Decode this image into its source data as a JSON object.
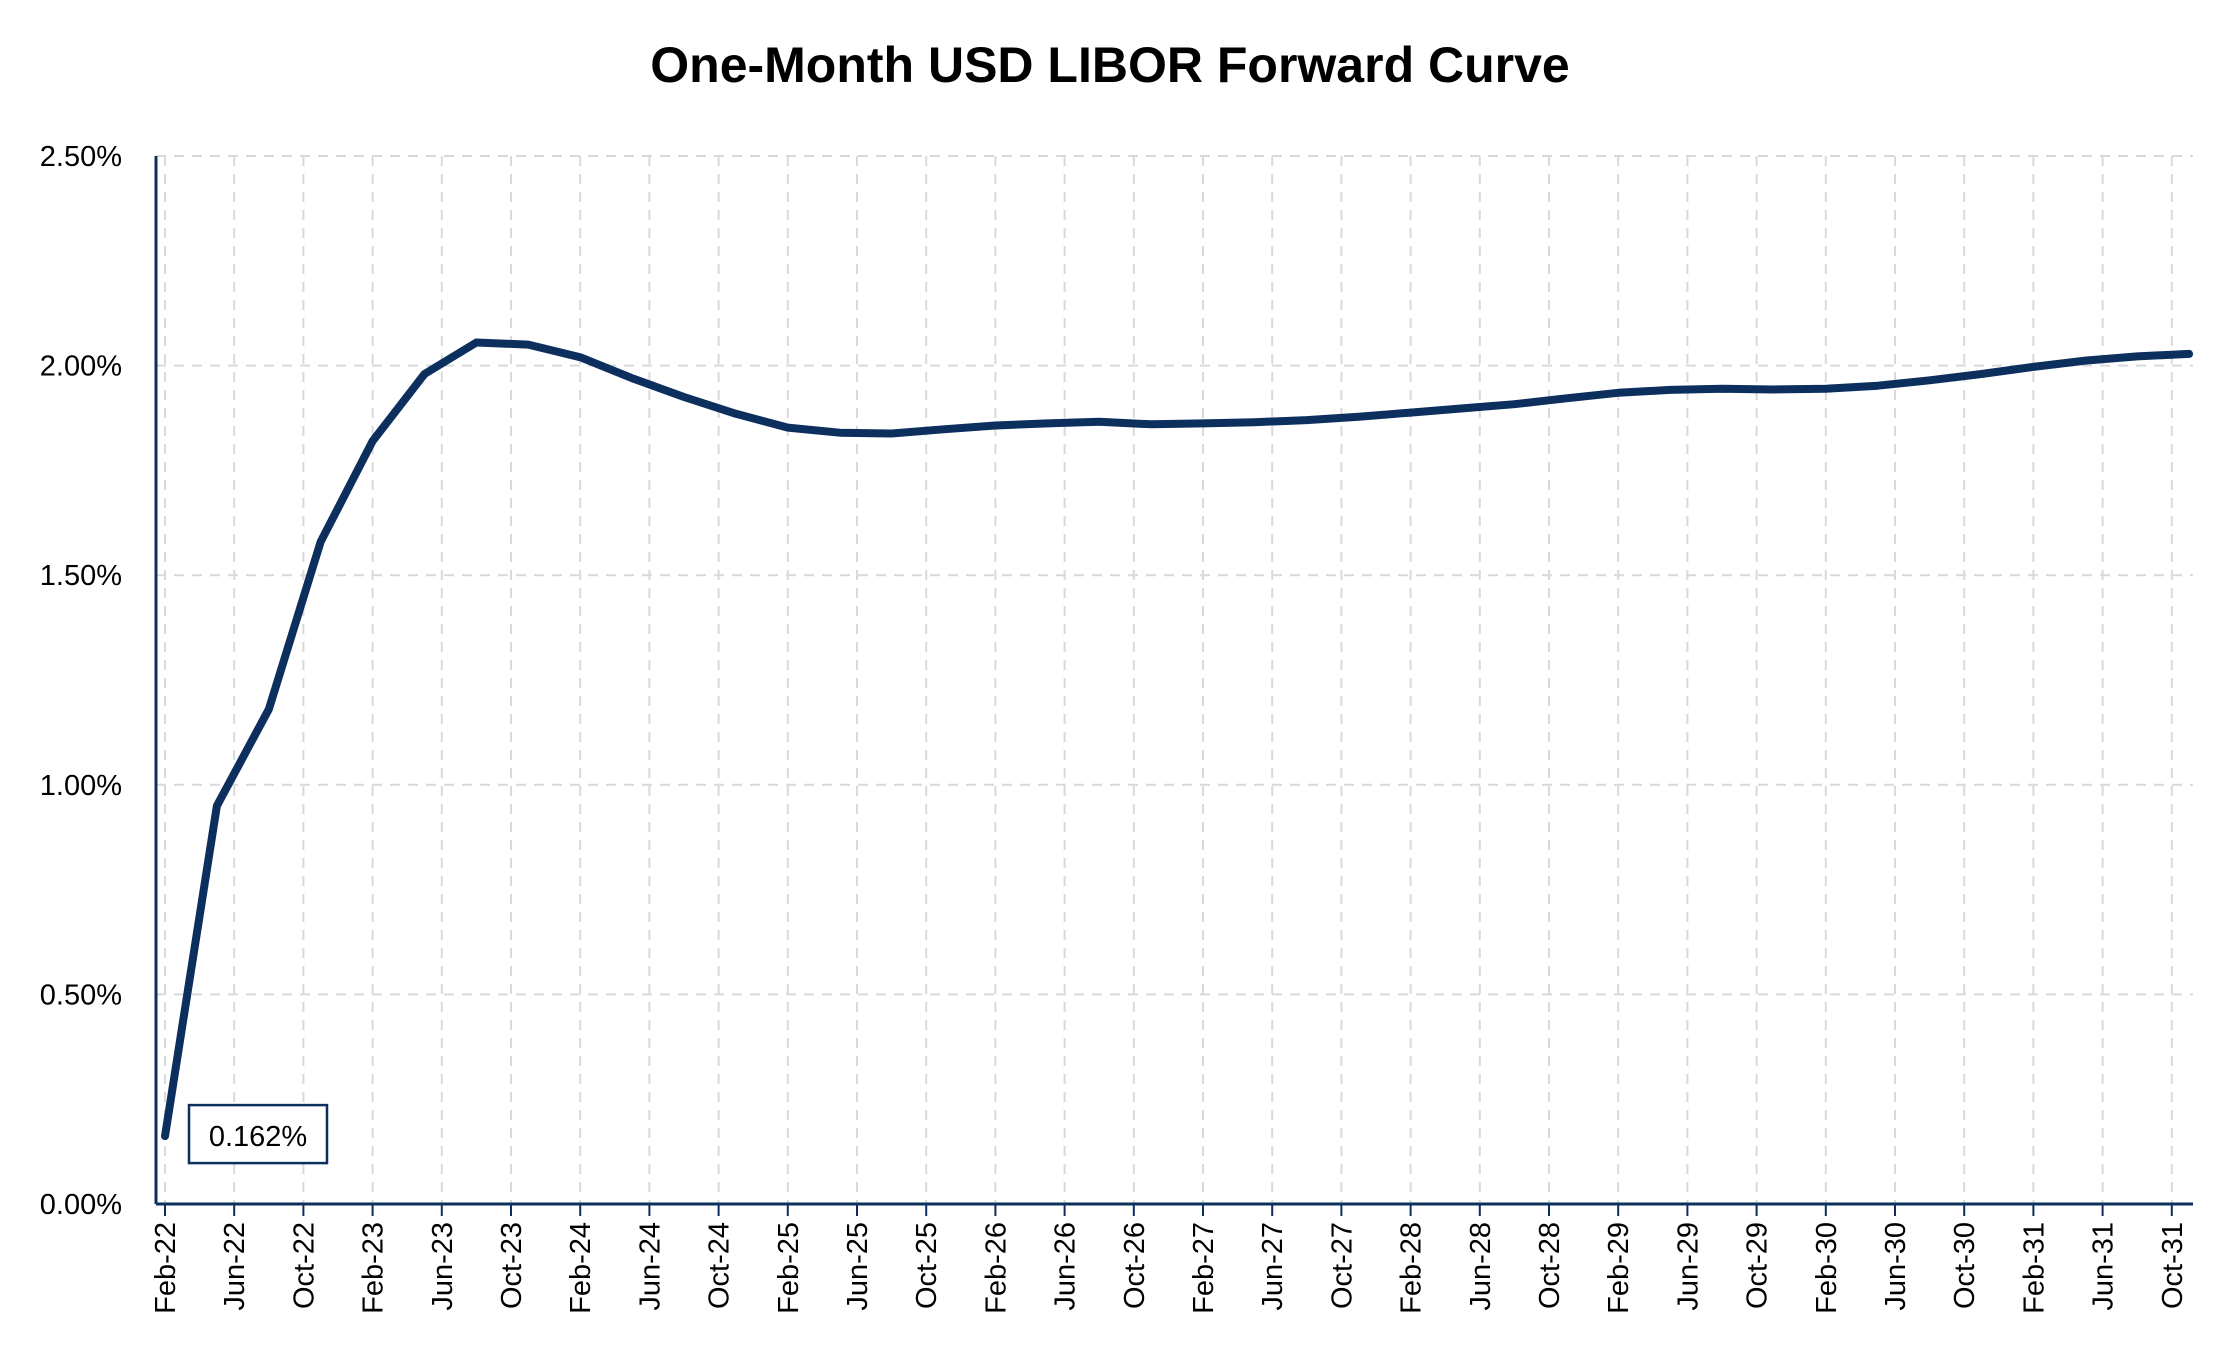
{
  "colors": {
    "line": "#0c2f5e",
    "axis": "#0c2f5e",
    "grid": "#d9d9d9",
    "text": "#000000",
    "label_border": "#0c2f5e"
  },
  "chart_data": {
    "type": "line",
    "title": "One-Month USD LIBOR Forward Curve",
    "xlabel": "",
    "ylabel": "",
    "grid": true,
    "ylim": [
      0,
      0.025
    ],
    "yticks": [
      0,
      0.005,
      0.01,
      0.015,
      0.02,
      0.025
    ],
    "ytick_labels": [
      "0.00%",
      "0.50%",
      "1.00%",
      "1.50%",
      "2.00%",
      "2.50%"
    ],
    "xticks": [
      "Feb-22",
      "Jun-22",
      "Oct-22",
      "Feb-23",
      "Jun-23",
      "Oct-23",
      "Feb-24",
      "Jun-24",
      "Oct-24",
      "Feb-25",
      "Jun-25",
      "Oct-25",
      "Feb-26",
      "Jun-26",
      "Oct-26",
      "Feb-27",
      "Jun-27",
      "Oct-27",
      "Feb-28",
      "Jun-28",
      "Oct-28",
      "Feb-29",
      "Jun-29",
      "Oct-29",
      "Feb-30",
      "Jun-30",
      "Oct-30",
      "Feb-31",
      "Jun-31",
      "Oct-31"
    ],
    "series": [
      {
        "x": [
          "Feb-22",
          "May-22",
          "Aug-22",
          "Nov-22",
          "Feb-23",
          "May-23",
          "Aug-23",
          "Nov-23",
          "Feb-24",
          "May-24",
          "Aug-24",
          "Nov-24",
          "Feb-25",
          "May-25",
          "Aug-25",
          "Nov-25",
          "Feb-26",
          "May-26",
          "Aug-26",
          "Nov-26",
          "Feb-27",
          "May-27",
          "Aug-27",
          "Nov-27",
          "Feb-28",
          "May-28",
          "Aug-28",
          "Nov-28",
          "Feb-29",
          "May-29",
          "Aug-29",
          "Nov-29",
          "Feb-30",
          "May-30",
          "Aug-30",
          "Nov-30",
          "Feb-31",
          "May-31",
          "Aug-31",
          "Nov-31"
        ],
        "values": [
          0.00162,
          0.0095,
          0.0118,
          0.0158,
          0.0182,
          0.0198,
          0.02055,
          0.0205,
          0.0202,
          0.0197,
          0.01925,
          0.01885,
          0.01852,
          0.0184,
          0.01838,
          0.01848,
          0.01857,
          0.01862,
          0.01866,
          0.0186,
          0.01862,
          0.01865,
          0.0187,
          0.01878,
          0.01888,
          0.01898,
          0.01908,
          0.01922,
          0.01935,
          0.01942,
          0.01945,
          0.01943,
          0.01945,
          0.01952,
          0.01965,
          0.0198,
          0.01997,
          0.02012,
          0.02022,
          0.02028
        ]
      }
    ],
    "annotations": [
      {
        "label": "0.162%",
        "x": "Feb-22",
        "y": 0.00162
      }
    ]
  }
}
